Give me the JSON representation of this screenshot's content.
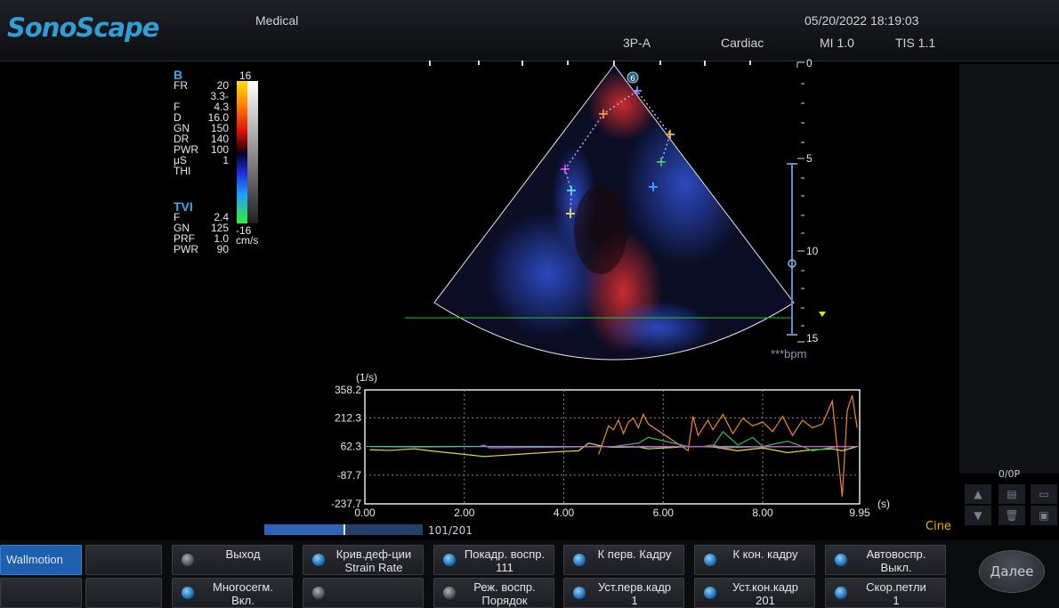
{
  "header": {
    "brand": "SonoScape",
    "mode": "Medical",
    "probe": "3P-A",
    "preset": "Cardiac",
    "datetime": "05/20/2022 18:19:03",
    "mi": "MI 1.0",
    "tis": "TIS 1.1"
  },
  "params_b": {
    "title": "B",
    "rows": [
      {
        "k": "FR",
        "v": "20"
      },
      {
        "k": "F",
        "v": "3.3-4.3"
      },
      {
        "k": "D",
        "v": "16.0"
      },
      {
        "k": "GN",
        "v": "150"
      },
      {
        "k": "DR",
        "v": "140"
      },
      {
        "k": "PWR",
        "v": "100"
      },
      {
        "k": "μS",
        "v": "1"
      },
      {
        "k": "THI",
        "v": ""
      }
    ]
  },
  "params_tvi": {
    "title": "TVI",
    "rows": [
      {
        "k": "F",
        "v": "2.4"
      },
      {
        "k": "GN",
        "v": "125"
      },
      {
        "k": "PRF",
        "v": "1.0"
      },
      {
        "k": "PWR",
        "v": "90"
      }
    ]
  },
  "colorbar": {
    "top": "16",
    "bottom": "-16",
    "unit": "cm/s"
  },
  "depth_scale": {
    "labels": [
      "0",
      "5",
      "10",
      "15"
    ]
  },
  "bpm": "***bpm",
  "probe_marker": "6",
  "chart_data": {
    "type": "line",
    "ylabel": "(1/s)",
    "xlabel": "(s)",
    "y_ticks": [
      "358.2",
      "212.3",
      "62.3",
      "-87.7",
      "-237.7"
    ],
    "x_ticks": [
      "0.00",
      "2.00",
      "4.00",
      "6.00",
      "8.00",
      "9.95"
    ],
    "xlim": [
      0,
      9.95
    ],
    "ylim": [
      -237.7,
      358.2
    ],
    "series": [
      {
        "color": "#f08a24",
        "x": [
          4.7,
          4.9,
          5.0,
          5.1,
          5.2,
          5.3,
          5.4,
          5.5,
          5.6,
          5.7,
          6.5,
          6.6,
          6.7,
          6.9,
          7.0,
          7.2,
          7.4,
          7.6,
          7.8,
          8.0,
          8.2,
          8.4,
          8.6,
          8.8,
          9.0,
          9.2,
          9.4,
          9.6,
          9.7,
          9.8,
          9.9
        ],
        "y": [
          20,
          170,
          150,
          200,
          130,
          190,
          210,
          160,
          230,
          180,
          40,
          220,
          120,
          200,
          150,
          230,
          130,
          210,
          170,
          190,
          140,
          220,
          120,
          200,
          160,
          180,
          300,
          -200,
          250,
          330,
          160
        ]
      },
      {
        "color": "#e0e040",
        "x": [
          0.1,
          0.5,
          1.0,
          1.3,
          2.4,
          3.9,
          4.3,
          4.5,
          4.8,
          5.0,
          5.5,
          5.7,
          6.5,
          7.0,
          7.5,
          8.0,
          8.5,
          9.0,
          9.4,
          9.6,
          9.9
        ],
        "y": [
          45,
          42,
          50,
          40,
          10,
          35,
          40,
          80,
          62,
          58,
          60,
          50,
          62,
          60,
          40,
          55,
          30,
          45,
          50,
          40,
          62
        ]
      },
      {
        "color": "#2fc6c6",
        "x": [
          0.1,
          1.0,
          2.0,
          3.0,
          4.0,
          4.5,
          5.0,
          6.0,
          6.5,
          7.0,
          8.0,
          9.0,
          9.9
        ],
        "y": [
          62,
          60,
          62,
          62,
          62,
          62,
          60,
          60,
          62,
          60,
          60,
          62,
          62
        ]
      },
      {
        "color": "#3dbb55",
        "x": [
          5.0,
          5.5,
          5.7,
          6.5,
          7.0,
          7.2,
          7.5,
          7.8,
          8.0,
          8.5,
          8.8,
          9.0,
          9.5,
          9.9
        ],
        "y": [
          62,
          80,
          110,
          62,
          62,
          140,
          70,
          110,
          62,
          90,
          62,
          40,
          62,
          62
        ]
      },
      {
        "color": "#d84ad8",
        "x": [
          2.3,
          2.4,
          2.5,
          5.0,
          6.8,
          7.0,
          7.2,
          8.0,
          9.9
        ],
        "y": [
          62,
          70,
          55,
          62,
          62,
          70,
          55,
          62,
          62
        ]
      }
    ]
  },
  "right_panel": {
    "counter": "0/0P"
  },
  "cine": "Cine",
  "progress": {
    "label": "101/201",
    "fraction": 0.5
  },
  "softkeys": {
    "wallmotion": "Wallmotion",
    "exit": "Выход",
    "strain": "Крив.деф-ции\nStrain Rate",
    "frame_play": "Покадр. воспр.\n111",
    "first_frame": "К перв. Кадру",
    "last_frame": "К кон. кадру",
    "autoplay": "Автовоспр.\nВыкл.",
    "multiseg": "Многосегм.\nВкл.",
    "play_mode": "Реж. воспр.\nПорядок",
    "set_first": "Уст.перв.кадр\n1",
    "set_last": "Уст.кон.кадр\n201",
    "loop_speed": "Скор.петли\n1",
    "next": "Далее"
  },
  "colors": {
    "accent": "#2f9fd6",
    "softkey_active": "#1e5fb0",
    "cine": "#f0b400"
  }
}
